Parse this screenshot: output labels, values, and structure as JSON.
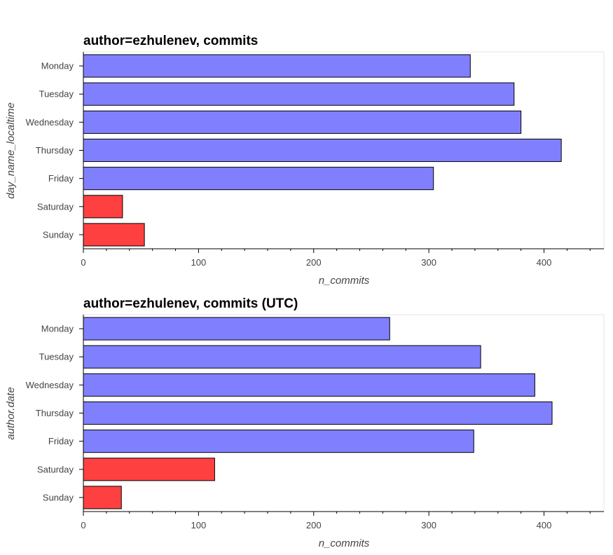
{
  "chart_data": [
    {
      "type": "bar",
      "orientation": "horizontal",
      "title": "author=ezhulenev, commits",
      "xlabel": "n_commits",
      "ylabel": "day_name_localtime",
      "xlim": [
        0,
        452
      ],
      "xticks": [
        "0",
        "100",
        "200",
        "300",
        "400"
      ],
      "grid": false,
      "categories": [
        "Monday",
        "Tuesday",
        "Wednesday",
        "Thursday",
        "Friday",
        "Saturday",
        "Sunday"
      ],
      "values": [
        336,
        374,
        380,
        415,
        304,
        34,
        53
      ],
      "colors": [
        "#8080ff",
        "#8080ff",
        "#8080ff",
        "#8080ff",
        "#8080ff",
        "#ff4040",
        "#ff4040"
      ]
    },
    {
      "type": "bar",
      "orientation": "horizontal",
      "title": "author=ezhulenev, commits (UTC)",
      "xlabel": "n_commits",
      "ylabel": "author.date",
      "xlim": [
        0,
        452
      ],
      "xticks": [
        "0",
        "100",
        "200",
        "300",
        "400"
      ],
      "grid": false,
      "categories": [
        "Monday",
        "Tuesday",
        "Wednesday",
        "Thursday",
        "Friday",
        "Saturday",
        "Sunday"
      ],
      "values": [
        266,
        345,
        392,
        407,
        339,
        114,
        33
      ],
      "colors": [
        "#8080ff",
        "#8080ff",
        "#8080ff",
        "#8080ff",
        "#8080ff",
        "#ff4040",
        "#ff4040"
      ]
    }
  ]
}
